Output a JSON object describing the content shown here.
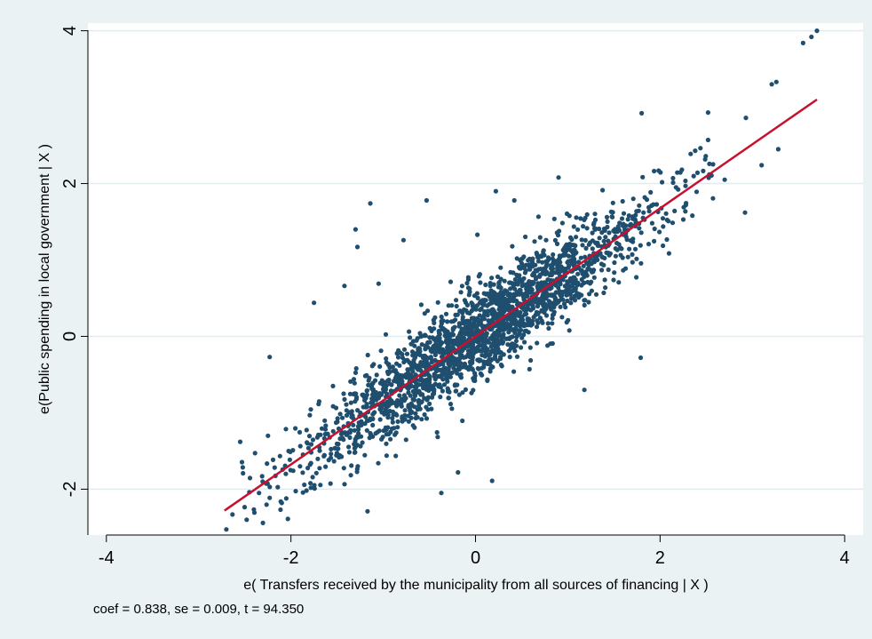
{
  "chart_data": {
    "type": "scatter",
    "title": "",
    "xlabel": "e( Transfers received by the municipality from all sources of financing | X )",
    "ylabel": "e(Public spending in local government | X )",
    "note": "coef = 0.838, se = 0.009, t = 94.350",
    "xlim": [
      -4.2,
      4.2
    ],
    "ylim": [
      -2.6,
      4.1
    ],
    "xticks": [
      -4,
      -2,
      0,
      2,
      4
    ],
    "xtick_labels": [
      "-4",
      "-2",
      "0",
      "2",
      "4"
    ],
    "yticks": [
      -2,
      0,
      2,
      4
    ],
    "ytick_labels": [
      "-2",
      "0",
      "2",
      "4"
    ],
    "grid": "horizontal",
    "legend": "none",
    "fit_line": {
      "slope": 0.838,
      "x": [
        -2.72,
        3.7
      ],
      "y": [
        -2.28,
        3.1
      ]
    },
    "colors": {
      "background": "#eaf2f3",
      "plot_background": "#ffffff",
      "grid": "#e2ecee",
      "points": "#1f4e6e",
      "fit_line": "#c8102e"
    },
    "series": [
      {
        "points": [
          [
            3.7,
            4.0
          ],
          [
            3.64,
            3.92
          ],
          [
            3.55,
            3.84
          ],
          [
            3.26,
            3.33
          ],
          [
            3.21,
            3.3
          ],
          [
            2.93,
            2.86
          ],
          [
            2.52,
            2.93
          ],
          [
            1.8,
            2.92
          ],
          [
            3.1,
            2.24
          ],
          [
            3.28,
            2.45
          ],
          [
            2.92,
            1.62
          ],
          [
            0.42,
            1.78
          ],
          [
            0.22,
            1.9
          ],
          [
            0.9,
            2.08
          ],
          [
            -0.53,
            1.78
          ],
          [
            -1.14,
            1.74
          ],
          [
            -1.3,
            1.4
          ],
          [
            -1.28,
            1.17
          ],
          [
            -0.78,
            1.26
          ],
          [
            0.02,
            1.33
          ],
          [
            -1.75,
            0.44
          ],
          [
            -2.23,
            -0.27
          ],
          [
            -2.55,
            -1.38
          ],
          [
            -2.1,
            -2.18
          ],
          [
            -2.48,
            -2.4
          ],
          [
            -1.17,
            -2.29
          ],
          [
            -0.37,
            -2.05
          ],
          [
            -0.19,
            -1.78
          ],
          [
            0.18,
            -1.89
          ],
          [
            1.18,
            -0.7
          ],
          [
            1.79,
            -0.28
          ],
          [
            0.78,
            -0.12
          ],
          [
            -1.05,
            0.69
          ],
          [
            -1.42,
            0.66
          ],
          [
            -0.55,
            0.3
          ],
          [
            2.35,
            1.58
          ],
          [
            2.14,
            2.07
          ],
          [
            2.52,
            2.57
          ],
          [
            2.38,
            2.43
          ],
          [
            2.7,
            2.05
          ]
        ]
      }
    ]
  }
}
